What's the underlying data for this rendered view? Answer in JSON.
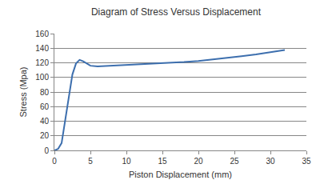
{
  "chart_data": {
    "type": "line",
    "title": "Diagram of Stress Versus Displacement",
    "x_label": "Piston Displacement (mm)",
    "y_label": "Stress (Mpa)",
    "x": [
      0,
      0.5,
      1,
      1.5,
      2,
      2.5,
      3,
      3.5,
      4,
      4.5,
      5,
      6,
      7,
      8,
      9,
      10,
      12,
      14,
      16,
      18,
      20,
      22,
      24,
      26,
      28,
      30,
      32
    ],
    "values": [
      0,
      2,
      10,
      40,
      75,
      104,
      119,
      124,
      122,
      119,
      116,
      115,
      115.5,
      115.5,
      116,
      116.5,
      117.5,
      118.5,
      119.5,
      121,
      122.5,
      124.5,
      126.5,
      129,
      131.5,
      134.5,
      137.5
    ],
    "color": "#3d6fae",
    "xlim": [
      0,
      35
    ],
    "xticks": [
      0,
      5,
      10,
      15,
      20,
      25,
      30,
      35
    ],
    "ylim": [
      0,
      160
    ],
    "yticks": [
      0,
      20,
      40,
      60,
      80,
      100,
      120,
      140,
      160
    ],
    "grid": true
  }
}
